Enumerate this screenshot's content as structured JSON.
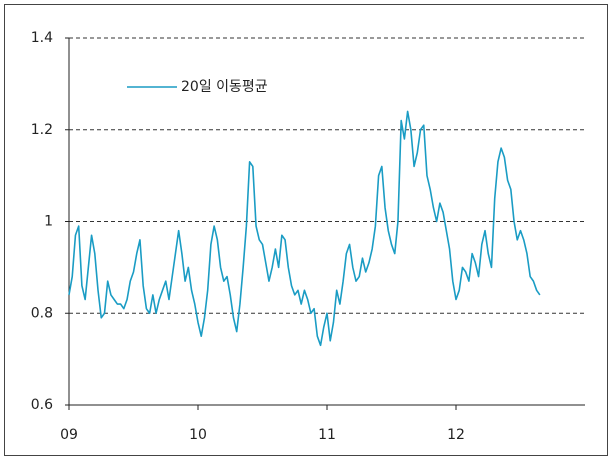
{
  "chart_data": {
    "type": "line",
    "x": [
      2009,
      2009.025,
      2009.05,
      2009.075,
      2009.1,
      2009.125,
      2009.15,
      2009.175,
      2009.2,
      2009.225,
      2009.25,
      2009.275,
      2009.3,
      2009.325,
      2009.35,
      2009.375,
      2009.4,
      2009.425,
      2009.45,
      2009.475,
      2009.5,
      2009.525,
      2009.55,
      2009.575,
      2009.6,
      2009.625,
      2009.65,
      2009.675,
      2009.7,
      2009.725,
      2009.75,
      2009.775,
      2009.8,
      2009.825,
      2009.85,
      2009.875,
      2009.9,
      2009.925,
      2009.95,
      2009.975,
      2010,
      2010.025,
      2010.05,
      2010.075,
      2010.1,
      2010.125,
      2010.15,
      2010.175,
      2010.2,
      2010.225,
      2010.25,
      2010.275,
      2010.3,
      2010.325,
      2010.35,
      2010.375,
      2010.4,
      2010.425,
      2010.45,
      2010.475,
      2010.5,
      2010.525,
      2010.55,
      2010.575,
      2010.6,
      2010.625,
      2010.65,
      2010.675,
      2010.7,
      2010.725,
      2010.75,
      2010.775,
      2010.8,
      2010.825,
      2010.85,
      2010.875,
      2010.9,
      2010.925,
      2010.95,
      2010.975,
      2011,
      2011.025,
      2011.05,
      2011.075,
      2011.1,
      2011.125,
      2011.15,
      2011.175,
      2011.2,
      2011.225,
      2011.25,
      2011.275,
      2011.3,
      2011.325,
      2011.35,
      2011.375,
      2011.4,
      2011.425,
      2011.45,
      2011.475,
      2011.5,
      2011.525,
      2011.55,
      2011.575,
      2011.6,
      2011.625,
      2011.65,
      2011.675,
      2011.7,
      2011.725,
      2011.75,
      2011.775,
      2011.8,
      2011.825,
      2011.85,
      2011.875,
      2011.9,
      2011.925,
      2011.95,
      2011.975,
      2012,
      2012.025,
      2012.05,
      2012.075,
      2012.1,
      2012.125,
      2012.15,
      2012.175,
      2012.2,
      2012.225,
      2012.25,
      2012.275,
      2012.3,
      2012.325,
      2012.35,
      2012.375,
      2012.4,
      2012.425,
      2012.45,
      2012.475,
      2012.5,
      2012.525,
      2012.55,
      2012.575,
      2012.6,
      2012.625,
      2012.65
    ],
    "series": [
      {
        "name": "20일 이동평균",
        "color": "#1a9cc4",
        "values": [
          0.84,
          0.88,
          0.97,
          0.99,
          0.86,
          0.83,
          0.9,
          0.97,
          0.93,
          0.85,
          0.79,
          0.8,
          0.87,
          0.84,
          0.83,
          0.82,
          0.82,
          0.81,
          0.83,
          0.87,
          0.89,
          0.93,
          0.96,
          0.86,
          0.81,
          0.8,
          0.84,
          0.8,
          0.83,
          0.85,
          0.87,
          0.83,
          0.88,
          0.93,
          0.98,
          0.93,
          0.87,
          0.9,
          0.85,
          0.82,
          0.78,
          0.75,
          0.79,
          0.85,
          0.95,
          0.99,
          0.96,
          0.9,
          0.87,
          0.88,
          0.84,
          0.79,
          0.76,
          0.82,
          0.9,
          0.99,
          1.13,
          1.12,
          0.99,
          0.96,
          0.95,
          0.91,
          0.87,
          0.9,
          0.94,
          0.9,
          0.97,
          0.96,
          0.9,
          0.86,
          0.84,
          0.85,
          0.82,
          0.85,
          0.83,
          0.8,
          0.81,
          0.75,
          0.73,
          0.77,
          0.8,
          0.74,
          0.78,
          0.85,
          0.82,
          0.87,
          0.93,
          0.95,
          0.9,
          0.87,
          0.88,
          0.92,
          0.89,
          0.91,
          0.94,
          0.99,
          1.1,
          1.12,
          1.03,
          0.98,
          0.95,
          0.93,
          1.0,
          1.22,
          1.18,
          1.24,
          1.2,
          1.12,
          1.15,
          1.2,
          1.21,
          1.1,
          1.07,
          1.03,
          1.0,
          1.04,
          1.02,
          0.98,
          0.94,
          0.87,
          0.83,
          0.85,
          0.9,
          0.89,
          0.87,
          0.93,
          0.91,
          0.88,
          0.95,
          0.98,
          0.93,
          0.9,
          1.05,
          1.13,
          1.16,
          1.14,
          1.09,
          1.07,
          1.0,
          0.96,
          0.98,
          0.96,
          0.93,
          0.88,
          0.87,
          0.85,
          0.84
        ]
      }
    ],
    "xlim": [
      2009,
      2013
    ],
    "xticks": [
      {
        "value": 2009,
        "label": "09"
      },
      {
        "value": 2010,
        "label": "10"
      },
      {
        "value": 2011,
        "label": "11"
      },
      {
        "value": 2012,
        "label": "12"
      }
    ],
    "ylim": [
      0.6,
      1.4
    ],
    "yticks": [
      0.6,
      0.8,
      1,
      1.2,
      1.4
    ],
    "grid": true,
    "legend": "top-left"
  }
}
